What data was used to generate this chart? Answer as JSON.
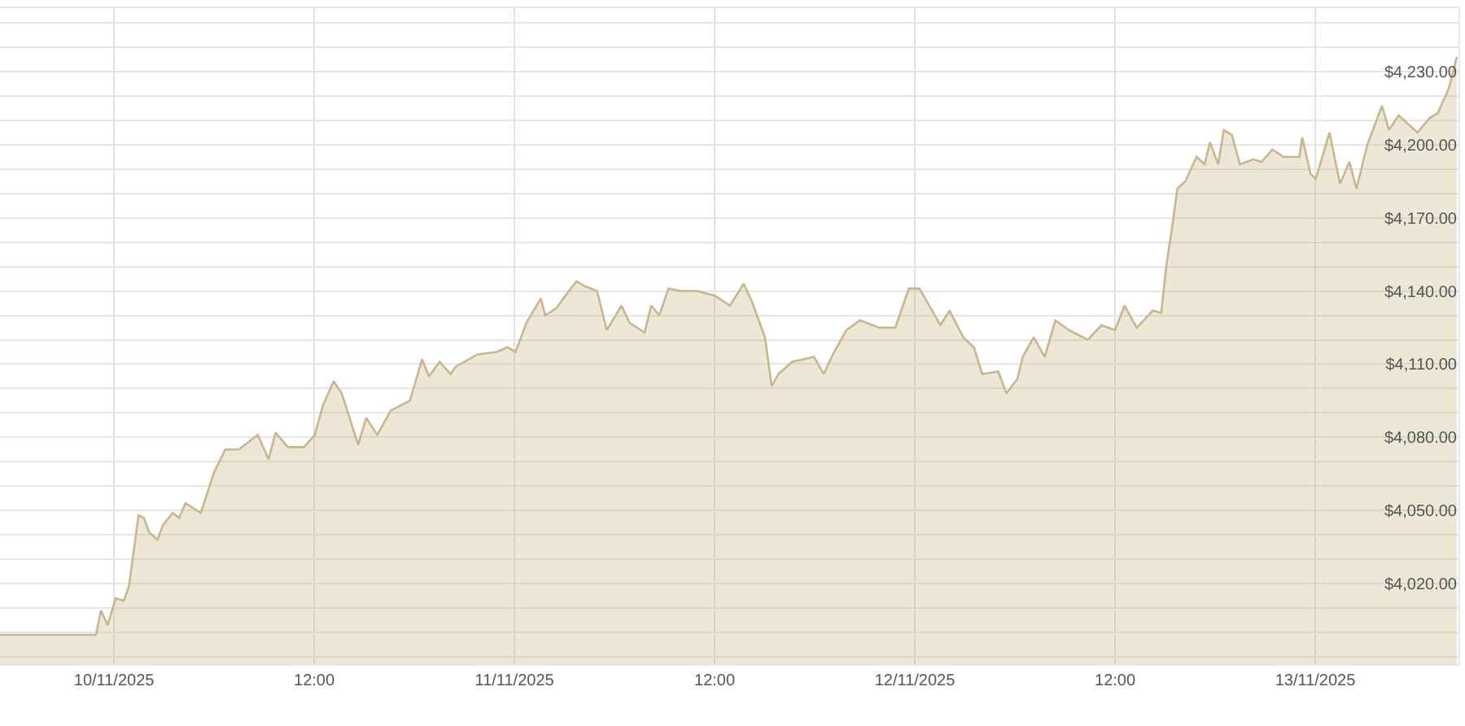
{
  "chart_data": {
    "type": "area",
    "grid": true,
    "marker": "none",
    "line_style": "solid",
    "xlim": [
      "2025-11-09T17:10",
      "2025-11-13T08:35"
    ],
    "xticks": [
      {
        "value": "2025-11-10T00:00",
        "label": "10/11/2025"
      },
      {
        "value": "2025-11-10T12:00",
        "label": "12:00"
      },
      {
        "value": "2025-11-11T00:00",
        "label": "11/11/2025"
      },
      {
        "value": "2025-11-11T12:00",
        "label": "12:00"
      },
      {
        "value": "2025-11-12T00:00",
        "label": "12/11/2025"
      },
      {
        "value": "2025-11-12T12:00",
        "label": "12:00"
      },
      {
        "value": "2025-11-13T00:00",
        "label": "13/11/2025"
      }
    ],
    "ylim": [
      3987,
      4256
    ],
    "yticks": [
      {
        "value": 3990,
        "label": null
      },
      {
        "value": 4000,
        "label": null
      },
      {
        "value": 4010,
        "label": null
      },
      {
        "value": 4020,
        "label": "$4,020.00"
      },
      {
        "value": 4030,
        "label": null
      },
      {
        "value": 4040,
        "label": null
      },
      {
        "value": 4050,
        "label": "$4,050.00"
      },
      {
        "value": 4060,
        "label": null
      },
      {
        "value": 4070,
        "label": null
      },
      {
        "value": 4080,
        "label": "$4,080.00"
      },
      {
        "value": 4090,
        "label": null
      },
      {
        "value": 4100,
        "label": null
      },
      {
        "value": 4110,
        "label": "$4,110.00"
      },
      {
        "value": 4120,
        "label": null
      },
      {
        "value": 4130,
        "label": null
      },
      {
        "value": 4140,
        "label": "$4,140.00"
      },
      {
        "value": 4150,
        "label": null
      },
      {
        "value": 4160,
        "label": null
      },
      {
        "value": 4170,
        "label": "$4,170.00"
      },
      {
        "value": 4180,
        "label": null
      },
      {
        "value": 4190,
        "label": null
      },
      {
        "value": 4200,
        "label": "$4,200.00"
      },
      {
        "value": 4210,
        "label": null
      },
      {
        "value": 4220,
        "label": null
      },
      {
        "value": 4230,
        "label": "$4,230.00"
      },
      {
        "value": 4240,
        "label": null
      },
      {
        "value": 4250,
        "label": null
      }
    ],
    "x": [
      "2025-11-09T17:10",
      "2025-11-09T22:55",
      "2025-11-09T23:13",
      "2025-11-09T23:37",
      "2025-11-10T00:06",
      "2025-11-10T00:35",
      "2025-11-10T00:54",
      "2025-11-10T01:28",
      "2025-11-10T01:47",
      "2025-11-10T02:07",
      "2025-11-10T02:36",
      "2025-11-10T02:56",
      "2025-11-10T03:31",
      "2025-11-10T03:54",
      "2025-11-10T04:17",
      "2025-11-10T05:12",
      "2025-11-10T06:01",
      "2025-11-10T06:40",
      "2025-11-10T07:29",
      "2025-11-10T08:37",
      "2025-11-10T09:16",
      "2025-11-10T09:41",
      "2025-11-10T10:25",
      "2025-11-10T11:23",
      "2025-11-10T12:02",
      "2025-11-10T12:31",
      "2025-11-10T13:10",
      "2025-11-10T13:39",
      "2025-11-10T14:38",
      "2025-11-10T15:07",
      "2025-11-10T15:47",
      "2025-11-10T16:35",
      "2025-11-10T17:44",
      "2025-11-10T18:28",
      "2025-11-10T18:52",
      "2025-11-10T19:31",
      "2025-11-10T20:10",
      "2025-11-10T20:29",
      "2025-11-10T21:47",
      "2025-11-10T22:56",
      "2025-11-10T23:35",
      "2025-11-11T00:04",
      "2025-11-11T00:43",
      "2025-11-11T01:35",
      "2025-11-11T01:51",
      "2025-11-11T02:31",
      "2025-11-11T03:09",
      "2025-11-11T03:43",
      "2025-11-11T04:13",
      "2025-11-11T04:57",
      "2025-11-11T05:32",
      "2025-11-11T06:25",
      "2025-11-11T06:54",
      "2025-11-11T07:48",
      "2025-11-11T08:12",
      "2025-11-11T08:41",
      "2025-11-11T09:14",
      "2025-11-11T09:59",
      "2025-11-11T10:58",
      "2025-11-11T12:02",
      "2025-11-11T12:55",
      "2025-11-11T13:44",
      "2025-11-11T14:13",
      "2025-11-11T14:42",
      "2025-11-11T15:01",
      "2025-11-11T15:25",
      "2025-11-11T15:50",
      "2025-11-11T16:39",
      "2025-11-11T17:57",
      "2025-11-11T18:32",
      "2025-11-11T19:05",
      "2025-11-11T19:54",
      "2025-11-11T20:43",
      "2025-11-11T21:51",
      "2025-11-11T22:50",
      "2025-11-11T23:38",
      "2025-11-12T00:17",
      "2025-11-12T00:47",
      "2025-11-12T01:32",
      "2025-11-12T02:05",
      "2025-11-12T02:54",
      "2025-11-12T03:32",
      "2025-11-12T04:02",
      "2025-11-12T05:00",
      "2025-11-12T05:29",
      "2025-11-12T06:09",
      "2025-11-12T06:28",
      "2025-11-12T07:07",
      "2025-11-12T07:47",
      "2025-11-12T08:25",
      "2025-11-12T09:14",
      "2025-11-12T10:22",
      "2025-11-12T11:11",
      "2025-11-12T12:00",
      "2025-11-12T12:34",
      "2025-11-12T13:18",
      "2025-11-12T14:16",
      "2025-11-12T14:46",
      "2025-11-12T15:05",
      "2025-11-12T15:25",
      "2025-11-12T15:44",
      "2025-11-12T16:13",
      "2025-11-12T16:53",
      "2025-11-12T17:22",
      "2025-11-12T17:41",
      "2025-11-12T18:11",
      "2025-11-12T18:31",
      "2025-11-12T19:00",
      "2025-11-12T19:29",
      "2025-11-12T20:17",
      "2025-11-12T20:47",
      "2025-11-12T21:26",
      "2025-11-12T22:05",
      "2025-11-12T23:03",
      "2025-11-12T23:13",
      "2025-11-12T23:43",
      "2025-11-13T00:02",
      "2025-11-13T00:51",
      "2025-11-13T01:29",
      "2025-11-13T02:03",
      "2025-11-13T02:28",
      "2025-11-13T03:07",
      "2025-11-13T04:00",
      "2025-11-13T04:25",
      "2025-11-13T05:00",
      "2025-11-13T06:07",
      "2025-11-13T06:52",
      "2025-11-13T07:21",
      "2025-11-13T08:00",
      "2025-11-13T08:29"
    ],
    "series": [
      {
        "color": "#c9b68a",
        "values": [
          3999,
          3999,
          4009,
          4003,
          4014,
          4013,
          4019,
          4048,
          4047,
          4041,
          4038,
          4044,
          4049,
          4047,
          4053,
          4049,
          4066,
          4075,
          4075,
          4081,
          4071,
          4082,
          4076,
          4076,
          4081,
          4093,
          4103,
          4098,
          4077,
          4088,
          4081,
          4091,
          4095,
          4112,
          4105,
          4111,
          4106,
          4109,
          4114,
          4115,
          4117,
          4115,
          4127,
          4137,
          4130,
          4133,
          4139,
          4144,
          4142,
          4140,
          4124,
          4134,
          4127,
          4123,
          4134,
          4130,
          4141,
          4140,
          4140,
          4138,
          4134,
          4143,
          4136,
          4127,
          4121,
          4101,
          4106,
          4111,
          4113,
          4106,
          4114,
          4124,
          4128,
          4125,
          4125,
          4141,
          4141,
          4135,
          4126,
          4132,
          4121,
          4117,
          4106,
          4107,
          4098,
          4104,
          4113,
          4121,
          4113,
          4128,
          4124,
          4120,
          4126,
          4124,
          4134,
          4125,
          4132,
          4131,
          4151,
          4166,
          4182,
          4185,
          4195,
          4192,
          4201,
          4192,
          4206,
          4204,
          4192,
          4194,
          4193,
          4198,
          4195,
          4195,
          4203,
          4188,
          4186,
          4205,
          4184,
          4193,
          4182,
          4200,
          4216,
          4206,
          4212,
          4205,
          4211,
          4213,
          4223,
          4236
        ]
      }
    ]
  }
}
